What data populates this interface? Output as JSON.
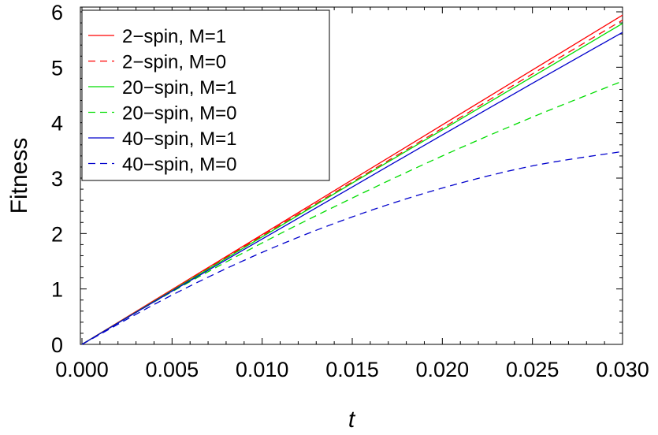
{
  "chart_data": {
    "type": "line",
    "xlabel": "t",
    "ylabel": "Fitness",
    "xlim": [
      0,
      0.03
    ],
    "ylim": [
      0,
      6
    ],
    "x_ticks": [
      "0.000",
      "0.005",
      "0.010",
      "0.015",
      "0.020",
      "0.025",
      "0.030"
    ],
    "y_ticks": [
      "0",
      "1",
      "2",
      "3",
      "4",
      "5",
      "6"
    ],
    "grid": false,
    "legend_position": "top-left",
    "x": [
      0,
      0.005,
      0.01,
      0.015,
      0.02,
      0.025,
      0.03
    ],
    "series": [
      {
        "name": "2−spin, M=1",
        "color": "#ff0000",
        "dash": "solid",
        "values": [
          0,
          0.99,
          1.98,
          2.97,
          3.96,
          4.95,
          5.94
        ]
      },
      {
        "name": "2−spin, M=0",
        "color": "#ff0000",
        "dash": "dashed",
        "values": [
          0,
          0.98,
          1.96,
          2.93,
          3.9,
          4.88,
          5.85
        ]
      },
      {
        "name": "20−spin, M=1",
        "color": "#00dd00",
        "dash": "solid",
        "values": [
          0,
          0.97,
          1.94,
          2.91,
          3.87,
          4.83,
          5.79
        ]
      },
      {
        "name": "20−spin, M=0",
        "color": "#00dd00",
        "dash": "dashed",
        "values": [
          0,
          0.95,
          1.83,
          2.64,
          3.4,
          4.1,
          4.75
        ]
      },
      {
        "name": "40−spin, M=1",
        "color": "#0000cc",
        "dash": "solid",
        "values": [
          0,
          0.96,
          1.9,
          2.84,
          3.78,
          4.71,
          5.63
        ]
      },
      {
        "name": "40−spin, M=0",
        "color": "#0000cc",
        "dash": "dashed",
        "values": [
          0,
          0.89,
          1.66,
          2.3,
          2.82,
          3.22,
          3.48
        ]
      }
    ]
  }
}
